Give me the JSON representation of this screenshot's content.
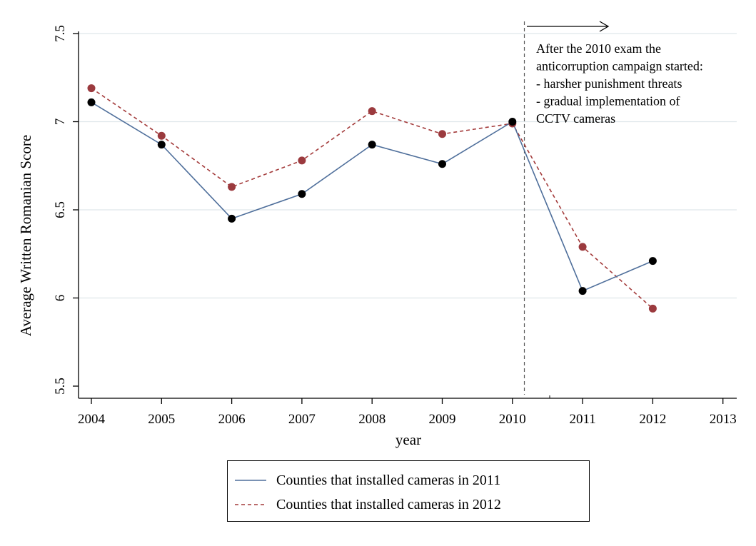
{
  "chart_data": {
    "type": "line",
    "xlabel": "year",
    "ylabel": "Average Written Romanian Score",
    "xlim": [
      2004,
      2013
    ],
    "ylim": [
      5.5,
      7.5
    ],
    "xticks": [
      "2004",
      "2005",
      "2006",
      "2007",
      "2008",
      "2009",
      "2010",
      "2011",
      "2012",
      "2013"
    ],
    "yticks": [
      "5.5",
      "6",
      "6.5",
      "7",
      "7.5"
    ],
    "grid": "horizontal",
    "legend_position": "bottom",
    "series": [
      {
        "name": "Counties that installed cameras in 2011",
        "style": "solid",
        "line_color": "#4f6f9b",
        "marker_color": "#000000",
        "x": [
          2004,
          2005,
          2006,
          2007,
          2008,
          2009,
          2010,
          2011,
          2012
        ],
        "values": [
          7.11,
          6.87,
          6.45,
          6.59,
          6.87,
          6.76,
          7.0,
          6.04,
          6.21
        ]
      },
      {
        "name": "Counties that installed cameras in 2012",
        "style": "dashed",
        "line_color": "#a33a3a",
        "marker_color": "#9b3a3e",
        "x": [
          2004,
          2005,
          2006,
          2007,
          2008,
          2009,
          2010,
          2011,
          2012
        ],
        "values": [
          7.19,
          6.92,
          6.63,
          6.78,
          7.06,
          6.93,
          6.99,
          6.29,
          5.94
        ]
      }
    ],
    "reference_line": {
      "x": 2010.17,
      "style": "dashed"
    },
    "annotation": {
      "lines": [
        "After the 2010 exam the",
        "anticorruption campaign started:",
        "- harsher punishment threats",
        "- gradual implementation of",
        "CCTV cameras"
      ],
      "arrow": "right"
    }
  }
}
